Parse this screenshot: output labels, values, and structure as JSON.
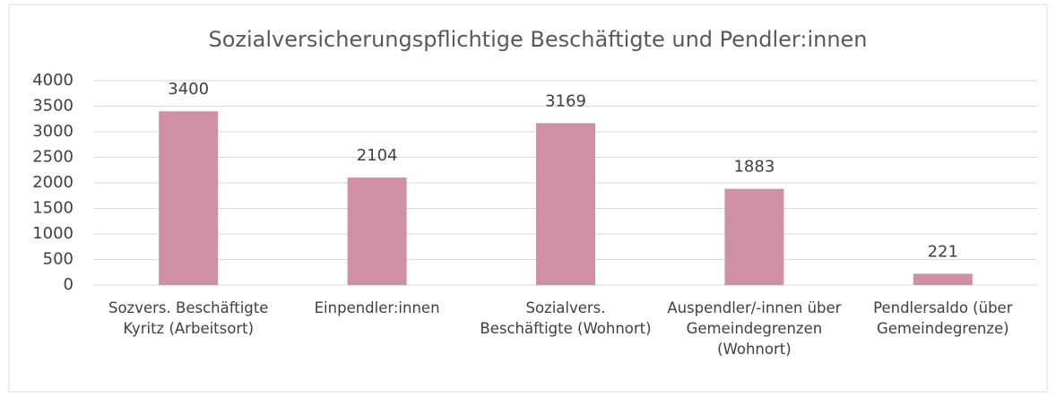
{
  "chart_data": {
    "type": "bar",
    "title": "Sozialversicherungspflichtige Beschäftigte und Pendler:innen",
    "categories": [
      "Sozvers. Beschäftigte Kyritz (Arbeitsort)",
      "Einpendler:innen",
      "Sozialvers. Beschäftigte (Wohnort)",
      "Auspendler/-innen über Gemeindegrenzen (Wohnort)",
      "Pendlersaldo (über Gemeindegrenze)"
    ],
    "values": [
      3400,
      2104,
      3169,
      1883,
      221
    ],
    "color": "#cf90a6",
    "ylim": [
      0,
      4000
    ],
    "yticks": [
      0,
      500,
      1000,
      1500,
      2000,
      2500,
      3000,
      3500,
      4000
    ],
    "grid": true
  }
}
